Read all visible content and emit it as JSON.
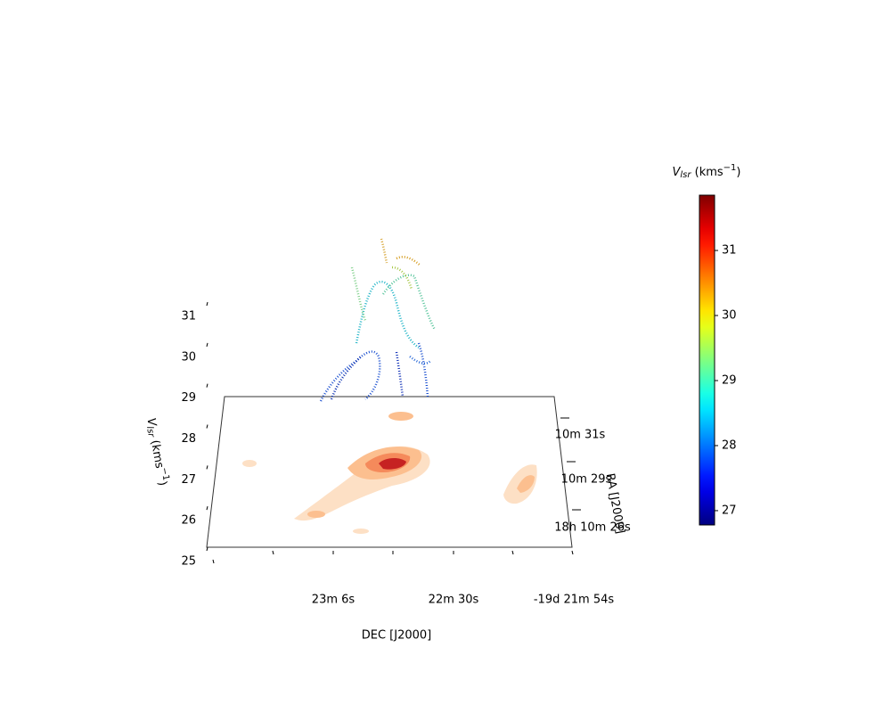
{
  "chart_data": {
    "type": "scatter3d",
    "zlabel": [
      "V",
      "lsr",
      " (kms",
      "−1",
      ")"
    ],
    "xlabel": "DEC [J2000]",
    "ylabel": "RA [J2000]",
    "zlim": [
      25,
      31.3
    ],
    "zticks": [
      25,
      26,
      27,
      28,
      29,
      30,
      31
    ],
    "xtick_labels": [
      "23m 6s",
      "22m 30s",
      "-19d 21m 54s"
    ],
    "ytick_labels": [
      "10m 31s",
      "10m 29s",
      "18h 10m 26s"
    ],
    "colorbar": {
      "label": [
        "V",
        "lsr",
        " (kms",
        "−1",
        ")"
      ],
      "clim": [
        26.78,
        31.85
      ],
      "ticks": [
        27,
        28,
        29,
        30,
        31
      ],
      "colormap": "jet"
    }
  }
}
